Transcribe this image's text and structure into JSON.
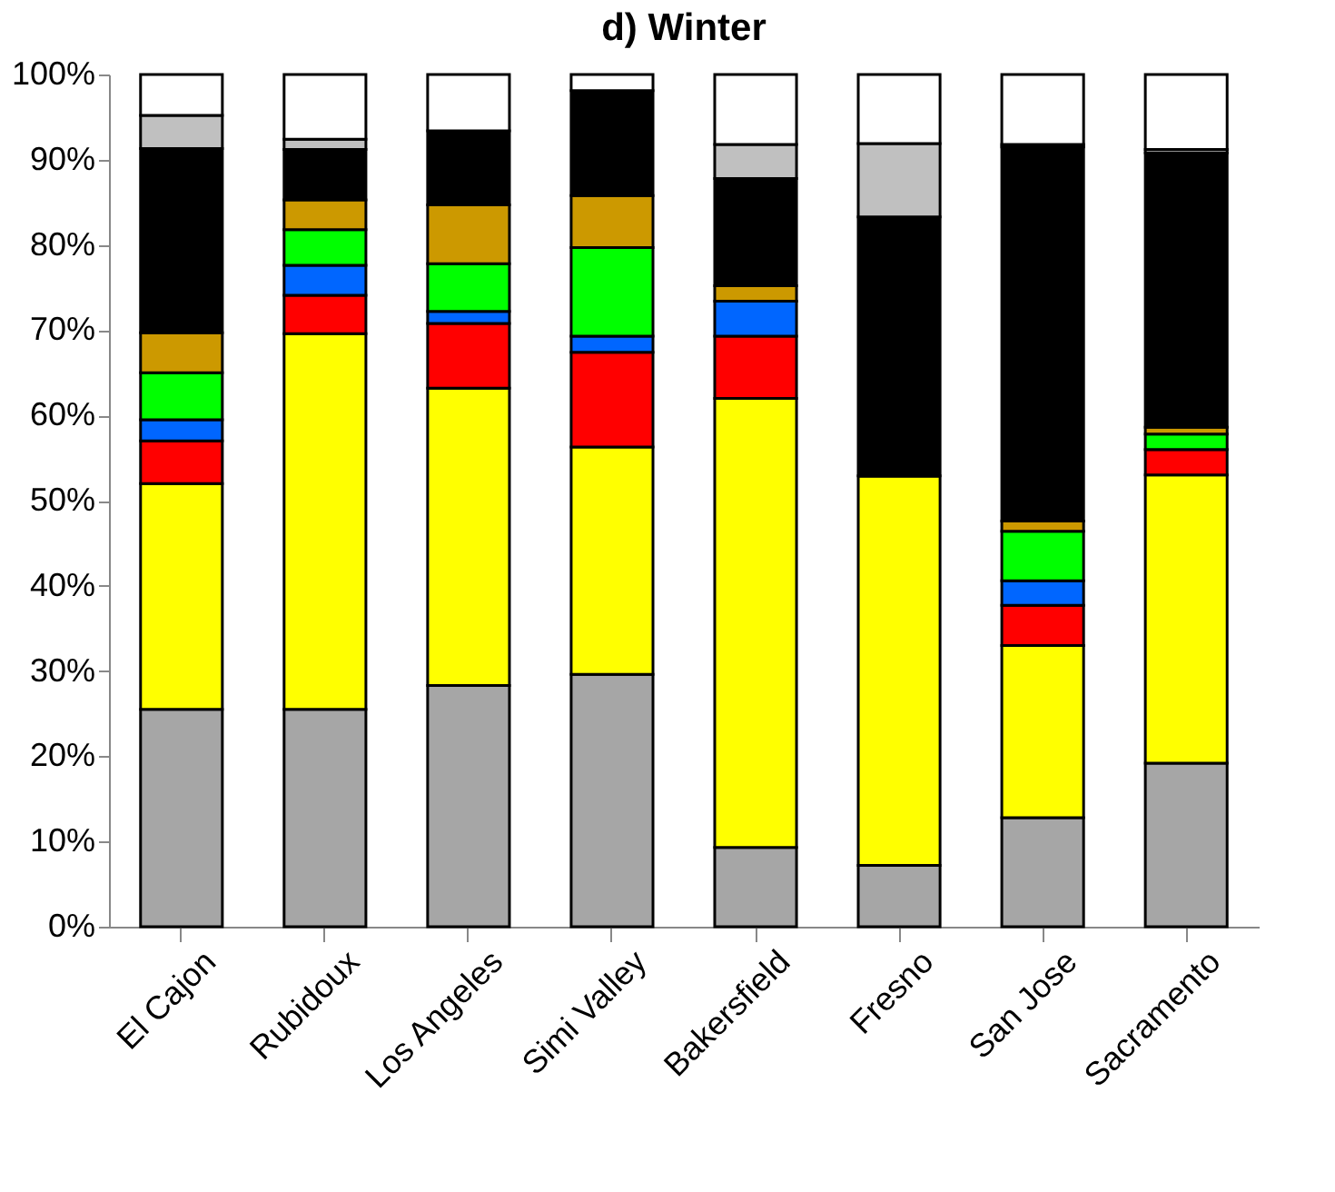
{
  "chart_data": {
    "type": "bar",
    "title": "d) Winter",
    "stacked": true,
    "grid": false,
    "legend": false,
    "categories": [
      "El Cajon",
      "Rubidoux",
      "Los Angeles",
      "Simi Valley",
      "Bakersfield",
      "Fresno",
      "San Jose",
      "Sacramento"
    ],
    "series": [
      {
        "color": "#a6a6a6",
        "values": [
          25.5,
          25.5,
          28.3,
          29.6,
          9.3,
          7.2,
          12.8,
          19.2
        ]
      },
      {
        "color": "#ffff00",
        "values": [
          26.5,
          44.1,
          34.9,
          26.7,
          52.7,
          45.7,
          20.2,
          33.8
        ]
      },
      {
        "color": "#ff0000",
        "values": [
          5,
          4.5,
          7.6,
          11.1,
          7.3,
          0,
          4.7,
          3
        ]
      },
      {
        "color": "#0066ff",
        "values": [
          2.5,
          3.5,
          1.4,
          1.9,
          4.1,
          0,
          2.9,
          0
        ]
      },
      {
        "color": "#00ff00",
        "values": [
          5.5,
          4.2,
          5.6,
          10.4,
          0,
          0,
          5.8,
          1.8
        ]
      },
      {
        "color": "#cc9900",
        "values": [
          4.7,
          3.5,
          6.9,
          6.1,
          1.8,
          0,
          1.2,
          0.8
        ]
      },
      {
        "color": "#000000",
        "values": [
          21.6,
          5.9,
          8.7,
          12.3,
          12.6,
          30.4,
          43.9,
          32.2
        ]
      },
      {
        "color": "#c0c0c0",
        "values": [
          3.9,
          1.2,
          0,
          0,
          4,
          8.6,
          0.3,
          0.4
        ]
      },
      {
        "color": "#ffffff",
        "values": [
          4.8,
          7.6,
          6.6,
          1.9,
          8.2,
          8.1,
          8.2,
          8.8
        ]
      }
    ],
    "ylim": [
      0,
      100
    ],
    "yticks": [
      {
        "value": 0,
        "label": "0%"
      },
      {
        "value": 10,
        "label": "10%"
      },
      {
        "value": 20,
        "label": "20%"
      },
      {
        "value": 30,
        "label": "30%"
      },
      {
        "value": 40,
        "label": "40%"
      },
      {
        "value": 50,
        "label": "50%"
      },
      {
        "value": 60,
        "label": "60%"
      },
      {
        "value": 70,
        "label": "70%"
      },
      {
        "value": 80,
        "label": "80%"
      },
      {
        "value": 90,
        "label": "90%"
      },
      {
        "value": 100,
        "label": "100%"
      }
    ]
  }
}
